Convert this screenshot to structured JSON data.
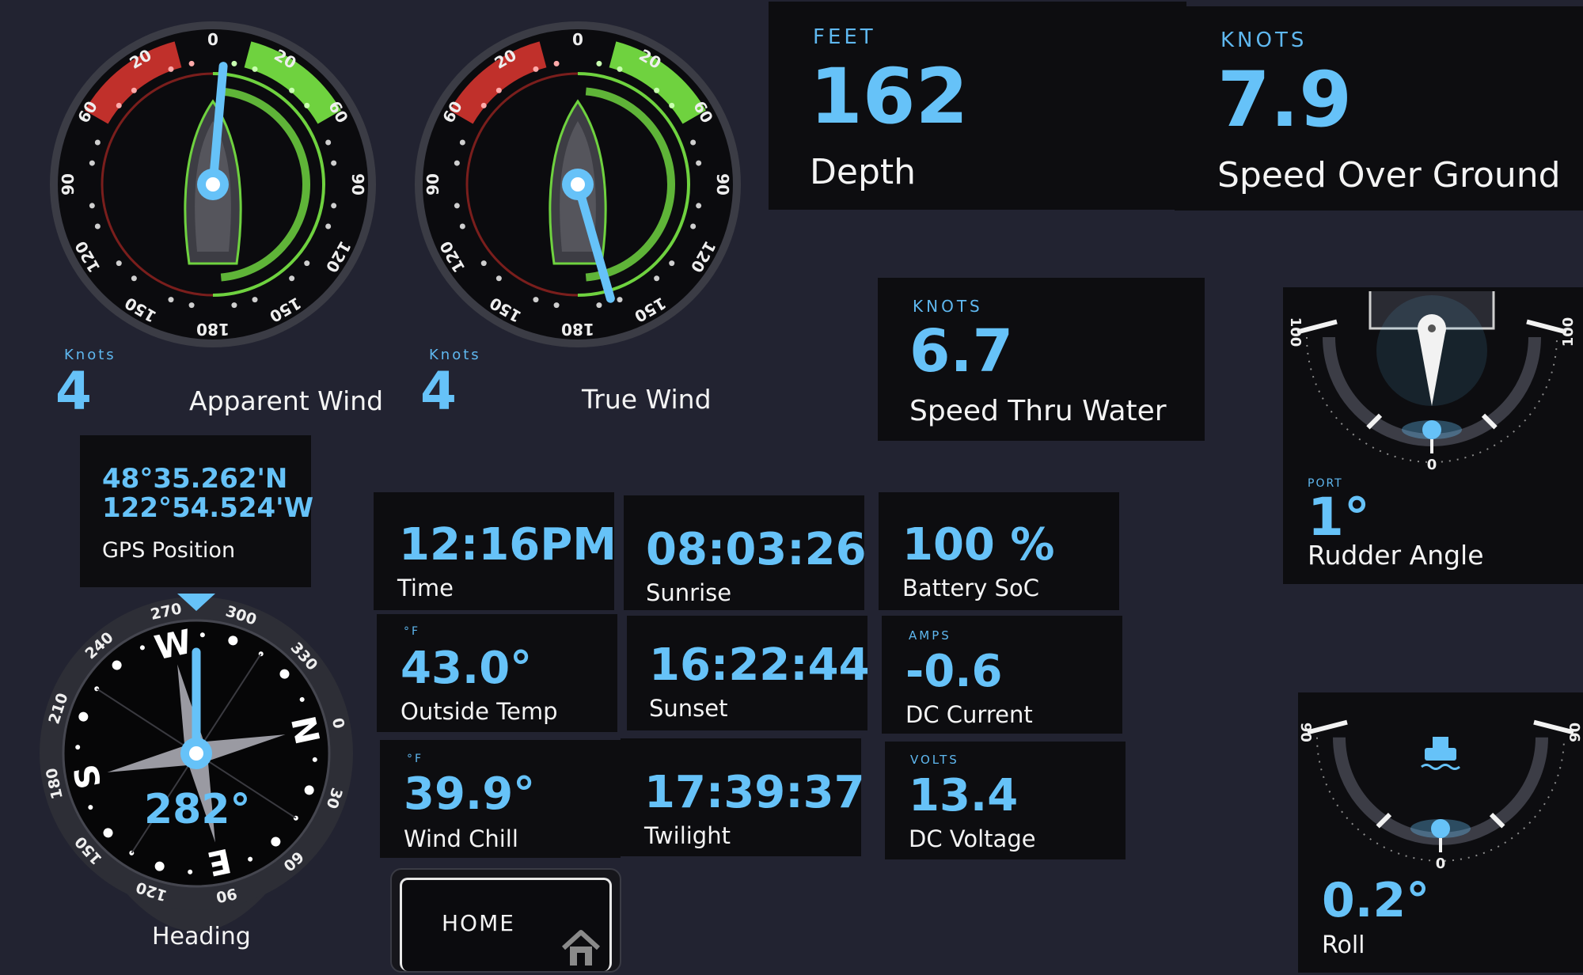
{
  "apparent_wind": {
    "unit": "Knots",
    "value": "4",
    "label": "Apparent Wind",
    "angle_deg": 5
  },
  "true_wind": {
    "unit": "Knots",
    "value": "4",
    "label": "True Wind",
    "angle_deg": 164
  },
  "wind_scale": [
    "0",
    "20",
    "60",
    "90",
    "120",
    "150",
    "180",
    "150",
    "120",
    "90",
    "60",
    "20"
  ],
  "depth": {
    "unit": "FEET",
    "value": "162",
    "label": "Depth"
  },
  "sog": {
    "unit": "KNOTS",
    "value": "7.9",
    "label": "Speed Over Ground"
  },
  "stw": {
    "unit": "KNOTS",
    "value": "6.7",
    "label": "Speed Thru Water"
  },
  "gps": {
    "lat": "48°35.262'N",
    "lon": "122°54.524'W",
    "label": "GPS Position"
  },
  "time": {
    "value": "12:16PM",
    "label": "Time"
  },
  "sunrise": {
    "value": "08:03:26",
    "label": "Sunrise"
  },
  "battery": {
    "value": "100 %",
    "label": "Battery SoC"
  },
  "outside_temp": {
    "unit": "°F",
    "value": "43.0°",
    "label": "Outside Temp"
  },
  "sunset": {
    "value": "16:22:44",
    "label": "Sunset"
  },
  "dc_current": {
    "unit": "AMPS",
    "value": "-0.6",
    "label": "DC Current"
  },
  "wind_chill": {
    "unit": "°F",
    "value": "39.9°",
    "label": "Wind Chill"
  },
  "twilight": {
    "value": "17:39:37",
    "label": "Twilight"
  },
  "dc_voltage": {
    "unit": "VOLTS",
    "value": "13.4",
    "label": "DC Voltage"
  },
  "heading": {
    "value": "282°",
    "label": "Heading",
    "deg": 282,
    "ticks": [
      "0",
      "30",
      "60",
      "90",
      "120",
      "150",
      "180",
      "210",
      "240",
      "270",
      "300",
      "330"
    ],
    "cardinals": {
      "n": "N",
      "e": "E",
      "s": "S",
      "w": "W"
    }
  },
  "rudder": {
    "side": "PORT",
    "value": "1°",
    "label": "Rudder Angle",
    "left": "100",
    "right": "100",
    "zero": "0"
  },
  "roll": {
    "value": "0.2°",
    "label": "Roll",
    "left": "90",
    "right": "90",
    "zero": "0"
  },
  "home": {
    "label": "HOME"
  },
  "colors": {
    "accent": "#66c2f8",
    "green": "#6fd23f",
    "red": "#c0302b",
    "panel": "#0d0d10",
    "bg": "#222331"
  }
}
